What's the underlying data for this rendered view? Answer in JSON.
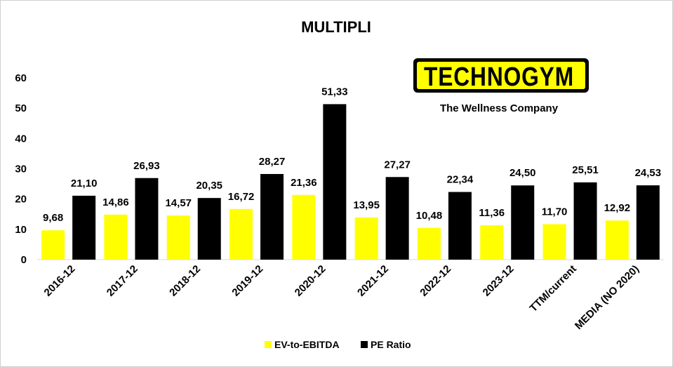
{
  "chart_data": {
    "type": "bar",
    "title": "MULTIPLI",
    "categories": [
      "2016-12",
      "2017-12",
      "2018-12",
      "2019-12",
      "2020-12",
      "2021-12",
      "2022-12",
      "2023-12",
      "TTM/current",
      "MEDIA (NO 2020)"
    ],
    "series": [
      {
        "name": "EV-to-EBITDA",
        "color": "#ffff00",
        "values": [
          9.68,
          14.86,
          14.57,
          16.72,
          21.36,
          13.95,
          10.48,
          11.36,
          11.7,
          12.92
        ],
        "labels": [
          "9,68",
          "14,86",
          "14,57",
          "16,72",
          "21,36",
          "13,95",
          "10,48",
          "11,36",
          "11,70",
          "12,92"
        ]
      },
      {
        "name": "PE Ratio",
        "color": "#000000",
        "values": [
          21.1,
          26.93,
          20.35,
          28.27,
          51.33,
          27.27,
          22.34,
          24.5,
          25.51,
          24.53
        ],
        "labels": [
          "21,10",
          "26,93",
          "20,35",
          "28,27",
          "51,33",
          "27,27",
          "22,34",
          "24,50",
          "25,51",
          "24,53"
        ]
      }
    ],
    "ylim": [
      0,
      60
    ],
    "yticks": [
      0,
      10,
      20,
      30,
      40,
      50,
      60
    ],
    "grid": false,
    "legend_position": "bottom"
  },
  "logo": {
    "brand": "TECHNOGYM",
    "tagline": "The Wellness Company",
    "color": "#ffff00"
  }
}
